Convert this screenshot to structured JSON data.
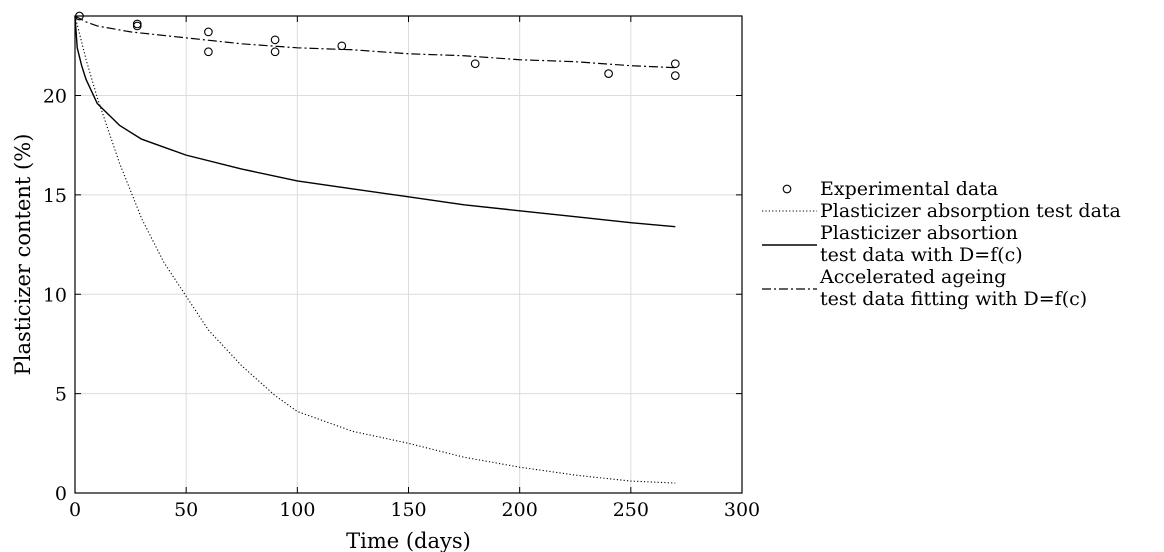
{
  "chart_data": {
    "type": "line",
    "xlabel": "Time (days)",
    "ylabel": "Plasticizer content (%)",
    "xlim": [
      0,
      300
    ],
    "ylim": [
      0,
      24
    ],
    "xticks": [
      0,
      50,
      100,
      150,
      200,
      250,
      300
    ],
    "yticks": [
      0,
      5,
      10,
      15,
      20
    ],
    "grid": true,
    "legend_position": "right",
    "series": [
      {
        "name": "Experimental data",
        "style": "markers-circle",
        "x": [
          2,
          28,
          28,
          60,
          60,
          90,
          90,
          120,
          180,
          240,
          270,
          270
        ],
        "y": [
          24.0,
          23.5,
          23.6,
          23.2,
          22.2,
          22.8,
          22.2,
          22.5,
          21.6,
          21.1,
          21.6,
          21.0
        ]
      },
      {
        "name": "Plasticizer absorption test data",
        "style": "dotted",
        "x": [
          0,
          5,
          10,
          20,
          30,
          40,
          50,
          60,
          75,
          90,
          100,
          125,
          150,
          175,
          200,
          225,
          250,
          270
        ],
        "y": [
          24,
          21.8,
          19.9,
          16.6,
          13.8,
          11.6,
          9.9,
          8.2,
          6.4,
          4.9,
          4.1,
          3.1,
          2.5,
          1.8,
          1.3,
          0.9,
          0.6,
          0.5
        ]
      },
      {
        "name": "Plasticizer absortion\ntest data with D=f(c)",
        "style": "solid",
        "x": [
          0,
          1,
          3,
          5,
          10,
          20,
          30,
          40,
          50,
          75,
          100,
          125,
          150,
          175,
          200,
          225,
          250,
          270
        ],
        "y": [
          24,
          22.4,
          21.5,
          20.8,
          19.6,
          18.5,
          17.8,
          17.4,
          17.0,
          16.3,
          15.7,
          15.3,
          14.9,
          14.5,
          14.2,
          13.9,
          13.6,
          13.4
        ]
      },
      {
        "name": "Accelerated ageing\ntest data fitting with D=f(c)",
        "style": "dashdot",
        "x": [
          0,
          5,
          10,
          25,
          50,
          75,
          100,
          125,
          150,
          175,
          200,
          225,
          250,
          270
        ],
        "y": [
          24,
          23.7,
          23.5,
          23.2,
          22.9,
          22.6,
          22.4,
          22.3,
          22.1,
          22.0,
          21.8,
          21.7,
          21.5,
          21.4
        ]
      }
    ]
  }
}
